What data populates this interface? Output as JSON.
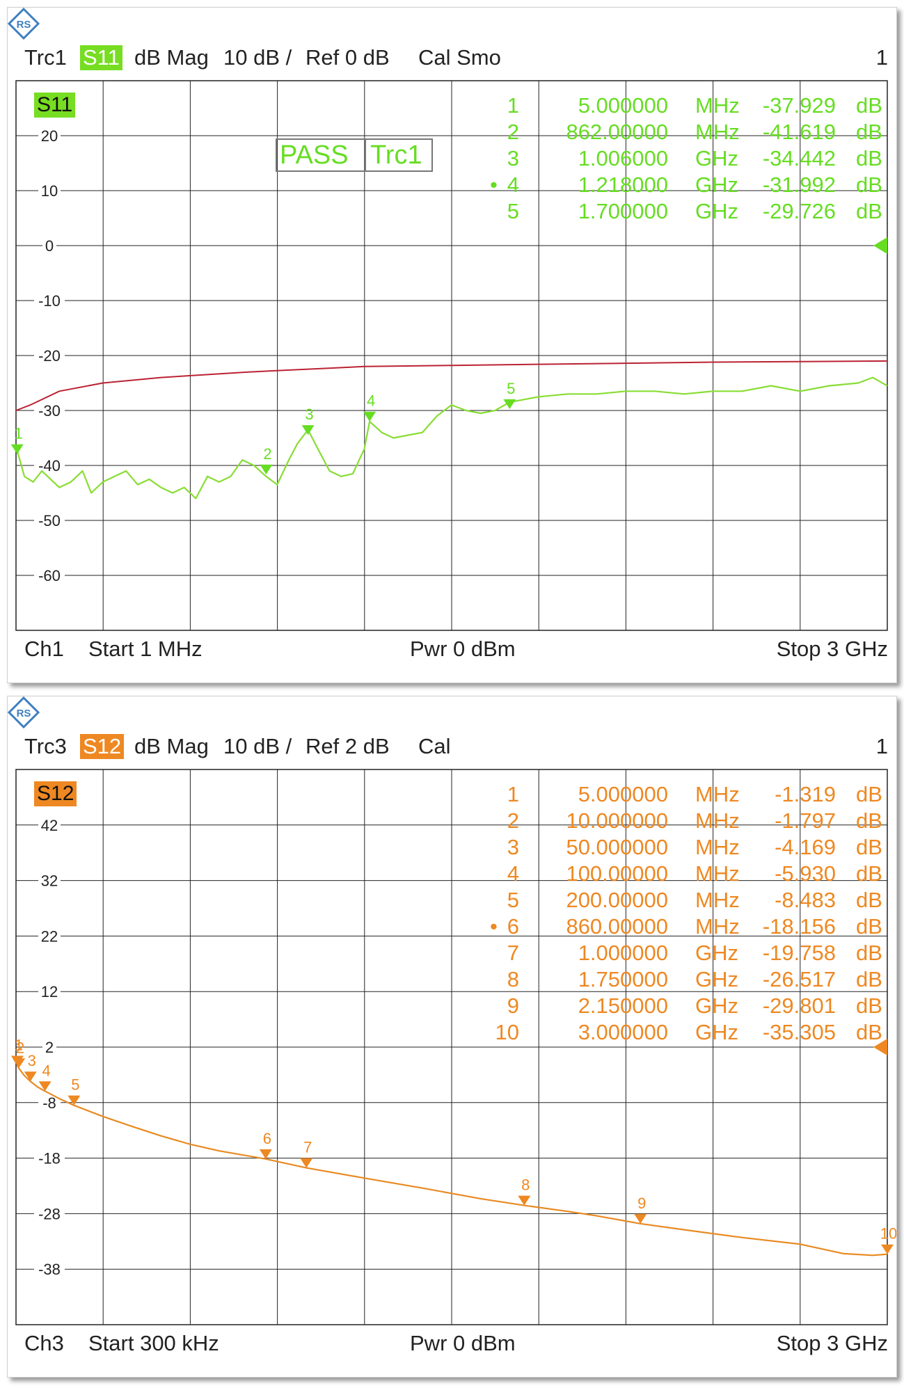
{
  "colors": {
    "s11_trace": "#88dd33",
    "s11_text": "#66dd22",
    "s11_badge": "#77dd22",
    "limit_line": "#bb2233",
    "s12_trace": "#e88a22",
    "s12_text": "#ee8822",
    "s12_badge": "#ee8822",
    "grid": "#222222"
  },
  "panels": [
    {
      "logo_icon": "rohde-schwarz-logo-icon",
      "header": {
        "trace": "Trc1",
        "param": "S11",
        "format": "dB Mag",
        "scale": "10 dB /",
        "ref": "Ref 0 dB",
        "cal": "Cal Smo",
        "channel_index": "1"
      },
      "trace_label": "S11",
      "pass": {
        "status": "PASS",
        "trace": "Trc1"
      },
      "markers": [
        {
          "num": "1",
          "active": false,
          "freq": "5.000000",
          "unit": "MHz",
          "value": "-37.929",
          "vunit": "dB"
        },
        {
          "num": "2",
          "active": false,
          "freq": "862.00000",
          "unit": "MHz",
          "value": "-41.619",
          "vunit": "dB"
        },
        {
          "num": "3",
          "active": false,
          "freq": "1.006000",
          "unit": "GHz",
          "value": "-34.442",
          "vunit": "dB"
        },
        {
          "num": "4",
          "active": true,
          "freq": "1.218000",
          "unit": "GHz",
          "value": "-31.992",
          "vunit": "dB"
        },
        {
          "num": "5",
          "active": false,
          "freq": "1.700000",
          "unit": "GHz",
          "value": "-29.726",
          "vunit": "dB"
        }
      ],
      "footer": {
        "channel": "Ch1",
        "start": "Start  1 MHz",
        "power": "Pwr  0 dBm",
        "stop": "Stop  3 GHz"
      }
    },
    {
      "logo_icon": "rohde-schwarz-logo-icon",
      "header": {
        "trace": "Trc3",
        "param": "S12",
        "format": "dB Mag",
        "scale": "10 dB /",
        "ref": "Ref 2 dB",
        "cal": "Cal",
        "channel_index": "1"
      },
      "trace_label": "S12",
      "markers": [
        {
          "num": "1",
          "active": false,
          "freq": "5.000000",
          "unit": "MHz",
          "value": "-1.319",
          "vunit": "dB"
        },
        {
          "num": "2",
          "active": false,
          "freq": "10.000000",
          "unit": "MHz",
          "value": "-1.797",
          "vunit": "dB"
        },
        {
          "num": "3",
          "active": false,
          "freq": "50.000000",
          "unit": "MHz",
          "value": "-4.169",
          "vunit": "dB"
        },
        {
          "num": "4",
          "active": false,
          "freq": "100.00000",
          "unit": "MHz",
          "value": "-5.930",
          "vunit": "dB"
        },
        {
          "num": "5",
          "active": false,
          "freq": "200.00000",
          "unit": "MHz",
          "value": "-8.483",
          "vunit": "dB"
        },
        {
          "num": "6",
          "active": true,
          "freq": "860.00000",
          "unit": "MHz",
          "value": "-18.156",
          "vunit": "dB"
        },
        {
          "num": "7",
          "active": false,
          "freq": "1.000000",
          "unit": "GHz",
          "value": "-19.758",
          "vunit": "dB"
        },
        {
          "num": "8",
          "active": false,
          "freq": "1.750000",
          "unit": "GHz",
          "value": "-26.517",
          "vunit": "dB"
        },
        {
          "num": "9",
          "active": false,
          "freq": "2.150000",
          "unit": "GHz",
          "value": "-29.801",
          "vunit": "dB"
        },
        {
          "num": "10",
          "active": false,
          "freq": "3.000000",
          "unit": "GHz",
          "value": "-35.305",
          "vunit": "dB"
        }
      ],
      "footer": {
        "channel": "Ch3",
        "start": "Start  300 kHz",
        "power": "Pwr  0 dBm",
        "stop": "Stop  3 GHz"
      }
    }
  ],
  "chart_data": [
    {
      "type": "line",
      "xlabel": "",
      "ylabel": "",
      "x_unit": "MHz",
      "xlim": [
        1,
        3000
      ],
      "ylim": [
        -70,
        30
      ],
      "yticks": [
        20,
        10,
        0,
        -10,
        -20,
        -30,
        -40,
        -50,
        -60
      ],
      "grid": true,
      "ref_level": 0,
      "series": [
        {
          "x": [
            1,
            30,
            60,
            90,
            120,
            150,
            190,
            230,
            260,
            300,
            340,
            380,
            420,
            460,
            500,
            540,
            580,
            620,
            660,
            700,
            740,
            780,
            820,
            862,
            900,
            940,
            970,
            1006,
            1040,
            1080,
            1120,
            1160,
            1200,
            1218,
            1260,
            1300,
            1350,
            1400,
            1450,
            1500,
            1550,
            1600,
            1650,
            1700,
            1800,
            1900,
            2000,
            2100,
            2200,
            2300,
            2400,
            2500,
            2600,
            2700,
            2800,
            2900,
            2950,
            3000
          ],
          "y": [
            -36.5,
            -42,
            -43,
            -41,
            -42.5,
            -44,
            -43,
            -41,
            -45,
            -43,
            -42,
            -41,
            -43.5,
            -42.5,
            -44,
            -45,
            -44,
            -46,
            -42,
            -43,
            -42,
            -39,
            -40,
            -42,
            -43.5,
            -39,
            -36,
            -33.5,
            -37,
            -41,
            -42,
            -41.5,
            -37,
            -32,
            -34,
            -35,
            -34.5,
            -34,
            -31,
            -29,
            -30,
            -30.5,
            -30,
            -28.5,
            -27.5,
            -27,
            -27,
            -26.5,
            -26.5,
            -27,
            -26.5,
            -26.5,
            -25.5,
            -26.5,
            -25.5,
            -25,
            -24,
            -25.5
          ]
        },
        {
          "x": [
            1,
            50,
            150,
            300,
            500,
            800,
            1000,
            1200,
            1500,
            1800,
            2100,
            2400,
            2700,
            3000
          ],
          "y": [
            -30,
            -29,
            -26.5,
            -25,
            -24,
            -23,
            -22.5,
            -22,
            -21.8,
            -21.6,
            -21.4,
            -21.2,
            -21.1,
            -21
          ]
        }
      ],
      "markers": [
        {
          "label": "1",
          "x": 5,
          "y": -37.929
        },
        {
          "label": "2",
          "x": 862,
          "y": -41.619
        },
        {
          "label": "3",
          "x": 1006,
          "y": -34.442
        },
        {
          "label": "4",
          "x": 1218,
          "y": -31.992
        },
        {
          "label": "5",
          "x": 1700,
          "y": -29.726
        }
      ]
    },
    {
      "type": "line",
      "xlabel": "",
      "ylabel": "",
      "x_unit": "MHz",
      "xlim": [
        0.3,
        3000
      ],
      "ylim": [
        -48,
        52
      ],
      "yticks": [
        42,
        32,
        22,
        12,
        2,
        -8,
        -18,
        -28,
        -38
      ],
      "grid": true,
      "ref_level": 2,
      "series": [
        {
          "x": [
            0.3,
            5,
            10,
            30,
            50,
            75,
            100,
            150,
            200,
            300,
            400,
            500,
            600,
            700,
            860,
            1000,
            1200,
            1400,
            1600,
            1750,
            1900,
            2000,
            2150,
            2300,
            2500,
            2700,
            2850,
            2950,
            3000
          ],
          "y": [
            0,
            -1.319,
            -1.797,
            -3.2,
            -4.169,
            -5.2,
            -5.93,
            -7.3,
            -8.483,
            -10.5,
            -12.3,
            -14,
            -15.5,
            -16.7,
            -18.156,
            -19.758,
            -21.6,
            -23.4,
            -25.3,
            -26.517,
            -27.6,
            -28.4,
            -29.801,
            -30.9,
            -32.3,
            -33.5,
            -35.2,
            -35.5,
            -35.305
          ]
        }
      ],
      "markers": [
        {
          "label": "1",
          "x": 5,
          "y": -1.319
        },
        {
          "label": "2",
          "x": 10,
          "y": -1.797
        },
        {
          "label": "3",
          "x": 50,
          "y": -4.169
        },
        {
          "label": "4",
          "x": 100,
          "y": -5.93
        },
        {
          "label": "5",
          "x": 200,
          "y": -8.483
        },
        {
          "label": "6",
          "x": 860,
          "y": -18.156
        },
        {
          "label": "7",
          "x": 1000,
          "y": -19.758
        },
        {
          "label": "8",
          "x": 1750,
          "y": -26.517
        },
        {
          "label": "9",
          "x": 2150,
          "y": -29.801
        },
        {
          "label": "10",
          "x": 3000,
          "y": -35.305
        }
      ]
    }
  ]
}
